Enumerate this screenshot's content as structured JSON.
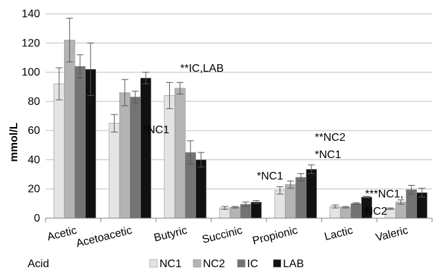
{
  "chart_data": {
    "type": "bar",
    "title": "",
    "xlabel": "Acid",
    "ylabel": "mmol/L",
    "ylim": [
      0,
      140
    ],
    "yticks": [
      0,
      20,
      40,
      60,
      80,
      100,
      120,
      140
    ],
    "grid": true,
    "legend_position": "bottom",
    "categories": [
      "Acetic",
      "Acetoacetic",
      "Butyric",
      "Succinic",
      "Propionic",
      "Lactic",
      "Valeric"
    ],
    "series": [
      {
        "name": "NC1",
        "color": "#e4e4e4",
        "values": [
          92,
          65,
          84,
          7,
          19,
          8,
          6.5
        ],
        "errors": [
          11,
          6,
          9,
          1,
          2.5,
          1,
          0.5
        ]
      },
      {
        "name": "NC2",
        "color": "#b4b4b4",
        "values": [
          122,
          86,
          89,
          7.5,
          23,
          7.5,
          11
        ],
        "errors": [
          15,
          9,
          4,
          0.5,
          2.5,
          0.5,
          1.5
        ]
      },
      {
        "name": "IC",
        "color": "#737373",
        "values": [
          104,
          83,
          45,
          9.5,
          28,
          10,
          19.5
        ],
        "errors": [
          8,
          4,
          8,
          1.5,
          2.5,
          0.5,
          3
        ]
      },
      {
        "name": "LAB",
        "color": "#111111",
        "values": [
          102,
          96,
          40,
          11,
          33.5,
          14.5,
          17.5
        ],
        "errors": [
          18,
          4,
          5,
          1,
          3,
          0.5,
          3
        ]
      }
    ],
    "annotations": [
      {
        "lines": [
          "*NC1"
        ],
        "category": "Acetoacetic"
      },
      {
        "lines": [
          "**IC,LAB"
        ],
        "category": "Butyric"
      },
      {
        "lines": [
          "*NC1"
        ],
        "category": "Propionic"
      },
      {
        "lines": [
          "**NC2",
          "*NC1"
        ],
        "category": "Propionic"
      },
      {
        "lines": [
          "***NC1,",
          "NC2"
        ],
        "category": "Valeric"
      }
    ]
  }
}
